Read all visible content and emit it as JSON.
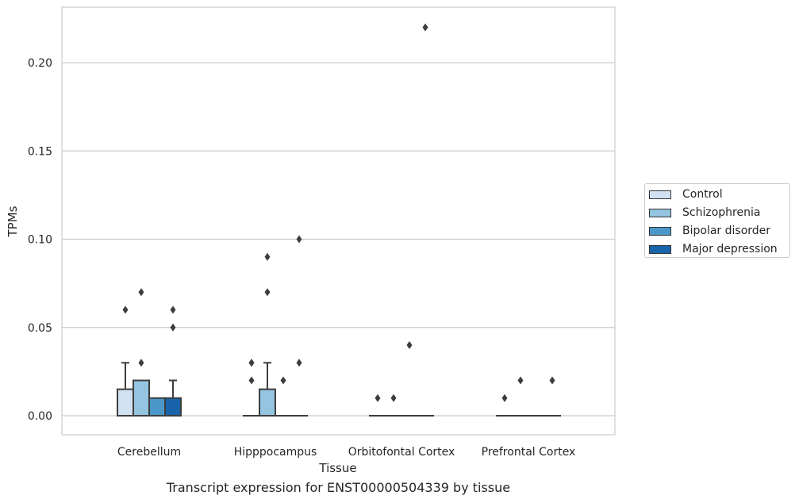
{
  "chart_data": {
    "type": "box",
    "caption": "Transcript expression for ENST00000504339 by tissue",
    "xlabel": "Tissue",
    "ylabel": "TPMs",
    "ylim": [
      -0.011,
      0.231
    ],
    "yticks": [
      0.0,
      0.05,
      0.1,
      0.15,
      0.2
    ],
    "ytick_labels": [
      "0.00",
      "0.05",
      "0.10",
      "0.15",
      "0.20"
    ],
    "categories": [
      "Cerebellum",
      "Hipppocampus",
      "Orbitofontal Cortex",
      "Prefrontal Cortex"
    ],
    "grid": "horizontal",
    "legend_position": "right-center",
    "series": [
      {
        "name": "Control",
        "color": "#d0e1f2",
        "boxes": [
          {
            "q1": 0.0,
            "median": 0.0,
            "q3": 0.015,
            "whisker_low": 0.0,
            "whisker_high": 0.03,
            "outliers": [
              0.06
            ]
          },
          {
            "q1": 0.0,
            "median": 0.0,
            "q3": 0.0,
            "whisker_low": 0.0,
            "whisker_high": 0.0,
            "outliers": [
              0.02,
              0.03,
              0.03
            ]
          },
          {
            "q1": 0.0,
            "median": 0.0,
            "q3": 0.0,
            "whisker_low": 0.0,
            "whisker_high": 0.0,
            "outliers": [
              0.01
            ]
          },
          {
            "q1": 0.0,
            "median": 0.0,
            "q3": 0.0,
            "whisker_low": 0.0,
            "whisker_high": 0.0,
            "outliers": [
              0.01
            ]
          }
        ]
      },
      {
        "name": "Schizophrenia",
        "color": "#94c4df",
        "boxes": [
          {
            "q1": 0.0,
            "median": 0.0,
            "q3": 0.02,
            "whisker_low": 0.0,
            "whisker_high": 0.02,
            "outliers": [
              0.03,
              0.07
            ]
          },
          {
            "q1": 0.0,
            "median": 0.0,
            "q3": 0.015,
            "whisker_low": 0.0,
            "whisker_high": 0.03,
            "outliers": [
              0.07,
              0.09
            ]
          },
          {
            "q1": 0.0,
            "median": 0.0,
            "q3": 0.0,
            "whisker_low": 0.0,
            "whisker_high": 0.0,
            "outliers": [
              0.01
            ]
          },
          {
            "q1": 0.0,
            "median": 0.0,
            "q3": 0.0,
            "whisker_low": 0.0,
            "whisker_high": 0.0,
            "outliers": [
              0.02
            ]
          }
        ]
      },
      {
        "name": "Bipolar disorder",
        "color": "#4a98c9",
        "boxes": [
          {
            "q1": 0.0,
            "median": 0.0,
            "q3": 0.01,
            "whisker_low": 0.0,
            "whisker_high": 0.01,
            "outliers": []
          },
          {
            "q1": 0.0,
            "median": 0.0,
            "q3": 0.0,
            "whisker_low": 0.0,
            "whisker_high": 0.0,
            "outliers": [
              0.02
            ]
          },
          {
            "q1": 0.0,
            "median": 0.0,
            "q3": 0.0,
            "whisker_low": 0.0,
            "whisker_high": 0.0,
            "outliers": [
              0.04
            ]
          },
          {
            "q1": 0.0,
            "median": 0.0,
            "q3": 0.0,
            "whisker_low": 0.0,
            "whisker_high": 0.0,
            "outliers": []
          }
        ]
      },
      {
        "name": "Major depression",
        "color": "#1764ab",
        "boxes": [
          {
            "q1": 0.0,
            "median": 0.0,
            "q3": 0.01,
            "whisker_low": 0.0,
            "whisker_high": 0.02,
            "outliers": [
              0.05,
              0.06
            ]
          },
          {
            "q1": 0.0,
            "median": 0.0,
            "q3": 0.0,
            "whisker_low": 0.0,
            "whisker_high": 0.0,
            "outliers": [
              0.03,
              0.1
            ]
          },
          {
            "q1": 0.0,
            "median": 0.0,
            "q3": 0.0,
            "whisker_low": 0.0,
            "whisker_high": 0.0,
            "outliers": [
              0.22
            ]
          },
          {
            "q1": 0.0,
            "median": 0.0,
            "q3": 0.0,
            "whisker_low": 0.0,
            "whisker_high": 0.0,
            "outliers": [
              0.02
            ]
          }
        ]
      }
    ]
  }
}
